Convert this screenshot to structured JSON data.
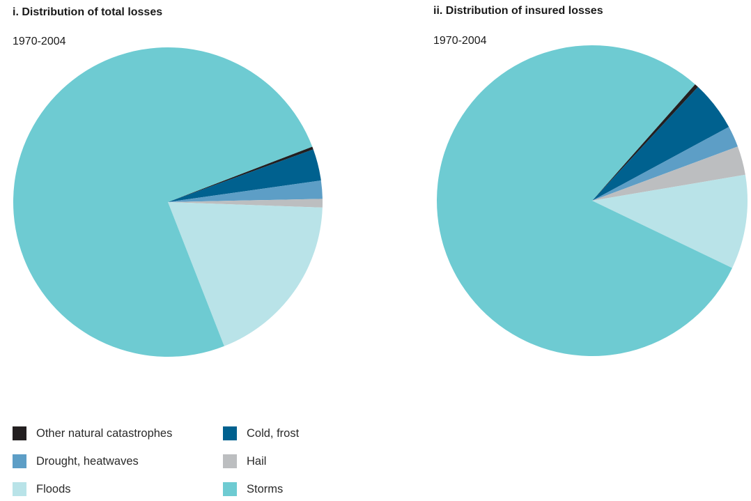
{
  "colors": {
    "other": "#231f20",
    "cold_frost": "#00618f",
    "drought": "#5d9ec6",
    "hail": "#bcbec0",
    "floods": "#b9e3e8",
    "storms": "#6ecbd2"
  },
  "chart_data": [
    {
      "type": "pie",
      "title": "i. Distribution of total losses",
      "subtitle": "1970-2004",
      "slices": [
        {
          "label": "Other natural catastrophes",
          "key": "other",
          "value": 0.3
        },
        {
          "label": "Cold, frost",
          "key": "cold_frost",
          "value": 3.3
        },
        {
          "label": "Drought, heatwaves",
          "key": "drought",
          "value": 1.9
        },
        {
          "label": "Hail",
          "key": "hail",
          "value": 0.9
        },
        {
          "label": "Floods",
          "key": "floods",
          "value": 18.5
        },
        {
          "label": "Storms",
          "key": "storms",
          "value": 75.1
        }
      ]
    },
    {
      "type": "pie",
      "title": "ii. Distribution of insured losses",
      "subtitle": "1970-2004",
      "slices": [
        {
          "label": "Other natural catastrophes",
          "key": "other",
          "value": 0.4
        },
        {
          "label": "Cold, frost",
          "key": "cold_frost",
          "value": 5.2
        },
        {
          "label": "Drought, heatwaves",
          "key": "drought",
          "value": 2.2
        },
        {
          "label": "Hail",
          "key": "hail",
          "value": 3.0
        },
        {
          "label": "Floods",
          "key": "floods",
          "value": 9.8
        },
        {
          "label": "Storms",
          "key": "storms",
          "value": 79.4
        }
      ]
    }
  ],
  "legend": [
    {
      "label": "Other natural catastrophes",
      "key": "other"
    },
    {
      "label": "Cold, frost",
      "key": "cold_frost"
    },
    {
      "label": "Drought, heatwaves",
      "key": "drought"
    },
    {
      "label": "Hail",
      "key": "hail"
    },
    {
      "label": "Floods",
      "key": "floods"
    },
    {
      "label": "Storms",
      "key": "storms"
    }
  ]
}
